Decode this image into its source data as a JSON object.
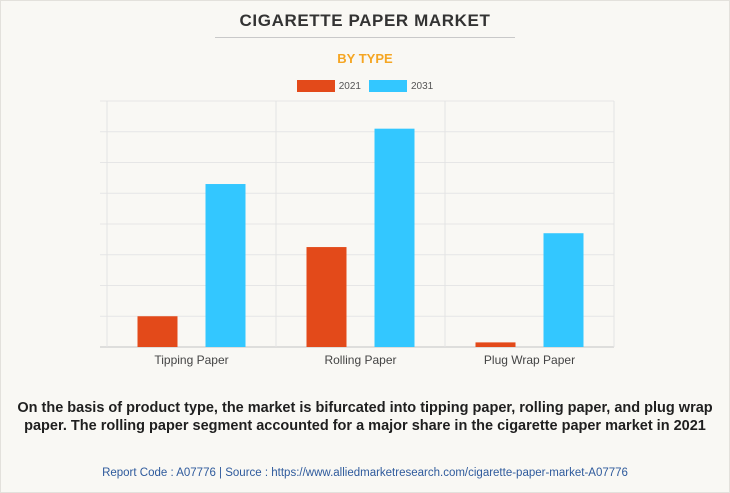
{
  "header": {
    "title": "CIGARETTE PAPER MARKET",
    "subtitle": "BY TYPE"
  },
  "chart_data": {
    "type": "bar",
    "title": "CIGARETTE PAPER MARKET",
    "subtitle": "BY TYPE",
    "categories": [
      "Tipping Paper",
      "Rolling Paper",
      "Plug Wrap Paper"
    ],
    "series": [
      {
        "name": "2021",
        "color": "#e34a1a",
        "values": [
          10,
          32.5,
          1.5
        ]
      },
      {
        "name": "2031",
        "color": "#33c7ff",
        "values": [
          53,
          71,
          37
        ]
      }
    ],
    "ylim": [
      0,
      80
    ],
    "y_tick_count": 8,
    "xlabel": "",
    "ylabel": "",
    "y_tick_labels_shown": false,
    "grid": true,
    "legend_position": "top-center"
  },
  "footer": {
    "description": "On the basis of product type, the market is bifurcated into tipping paper, rolling paper, and plug wrap paper. The rolling paper segment accounted for a major share in the cigarette paper market in 2021",
    "source": "Report Code : A07776  |  Source : https://www.alliedmarketresearch.com/cigarette-paper-market-A07776"
  }
}
